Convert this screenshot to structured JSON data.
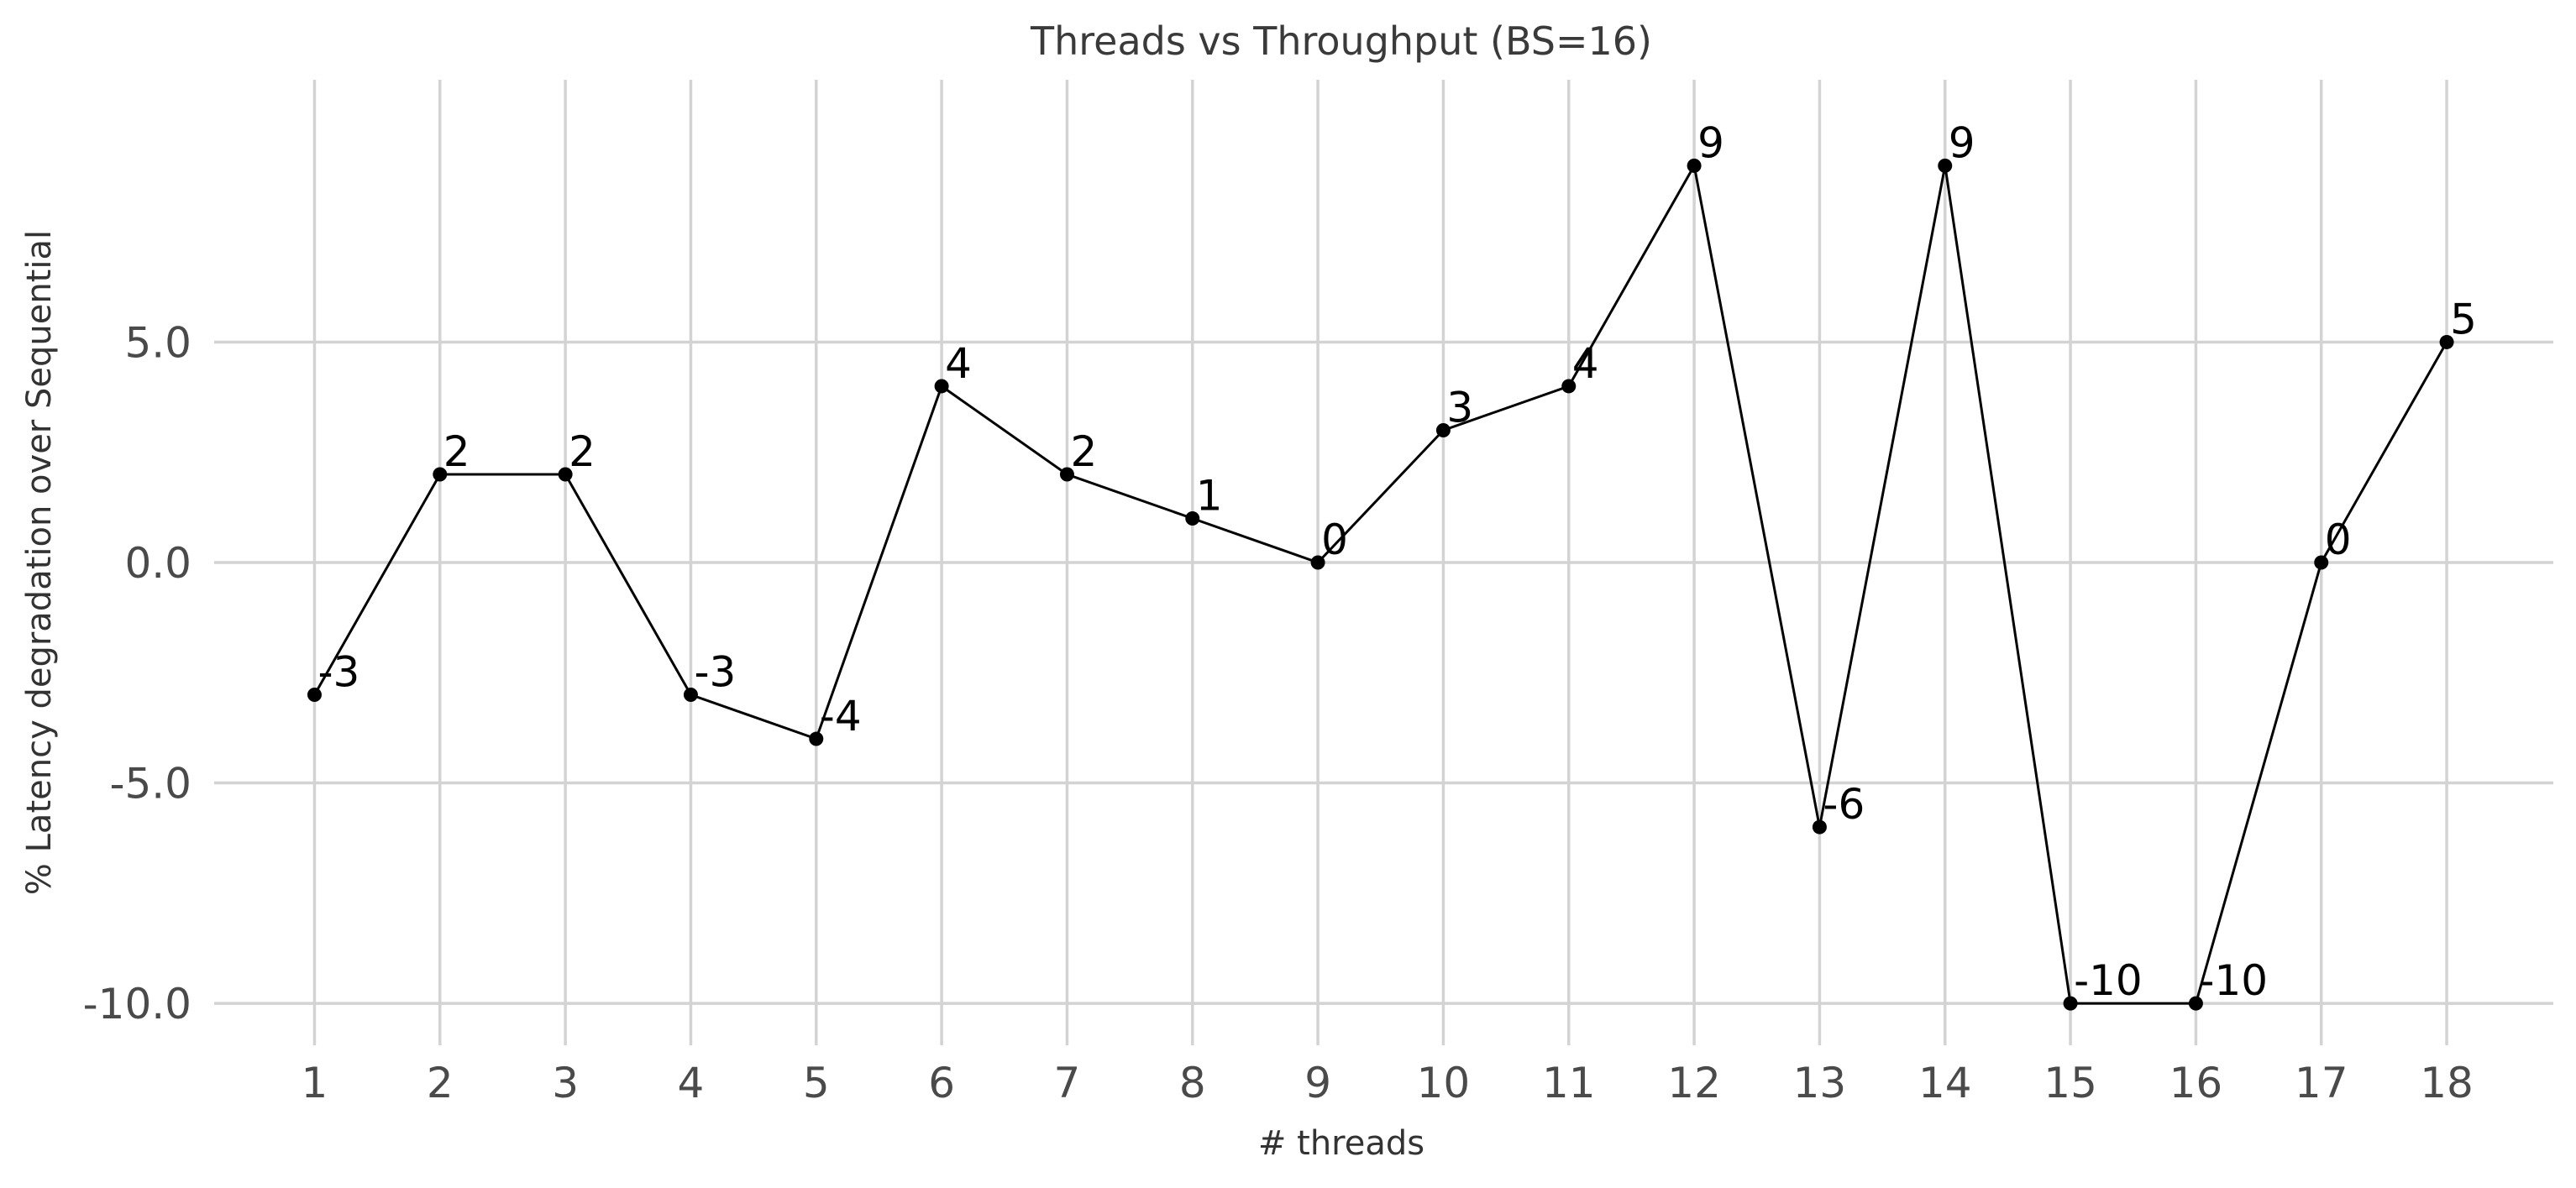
{
  "chart_data": {
    "type": "line",
    "title": "Threads vs Throughput (BS=16)",
    "xlabel": "# threads",
    "ylabel": "% Latency degradation over Sequential",
    "x": [
      1,
      2,
      3,
      4,
      5,
      6,
      7,
      8,
      9,
      10,
      11,
      12,
      13,
      14,
      15,
      16,
      17,
      18
    ],
    "series": [
      {
        "values": [
          -3,
          2,
          2,
          -3,
          -4,
          4,
          2,
          1,
          0,
          3,
          4,
          9,
          -6,
          9,
          -10,
          -10,
          0,
          5
        ],
        "data_labels": [
          "-3",
          "2",
          "2",
          "-3",
          "-4",
          "4",
          "2",
          "1",
          "0",
          "3",
          "4",
          "9",
          "-6",
          "9",
          "-10",
          "-10",
          "0",
          "5"
        ],
        "color": "#000000"
      }
    ],
    "xticks": [
      "1",
      "2",
      "3",
      "4",
      "5",
      "6",
      "7",
      "8",
      "9",
      "10",
      "11",
      "12",
      "13",
      "14",
      "15",
      "16",
      "17",
      "18"
    ],
    "yticks": [
      {
        "value": -10,
        "label": "-10.0"
      },
      {
        "value": -5,
        "label": "-5.0"
      },
      {
        "value": 0,
        "label": "0.0"
      },
      {
        "value": 5,
        "label": "5.0"
      }
    ],
    "xlim": [
      0.2,
      18.85
    ],
    "ylim": [
      -10.95,
      10.95
    ],
    "grid": true,
    "grid_color": "#d3d3d3",
    "legend": "none"
  }
}
